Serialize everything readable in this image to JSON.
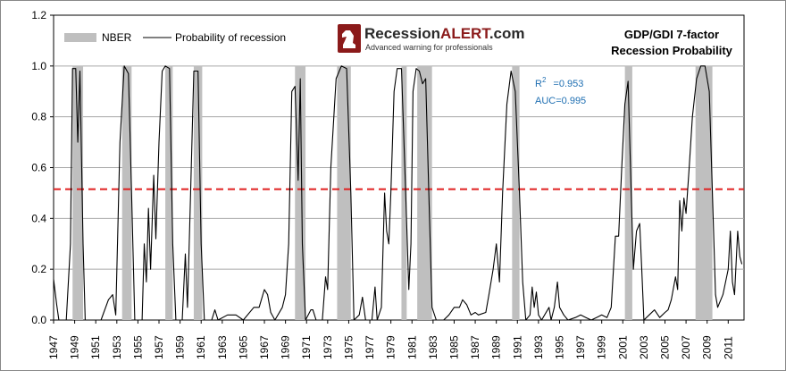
{
  "chart_data": {
    "type": "line",
    "title": "GDP/GDI 7-factor",
    "subtitle": "Recession Probability",
    "xlabel": "",
    "ylabel": "",
    "xlim": [
      1947,
      2012.5
    ],
    "ylim": [
      0,
      1.2
    ],
    "y_ticks": [
      "0.0",
      "0.2",
      "0.4",
      "0.6",
      "0.8",
      "1.0",
      "1.2"
    ],
    "x_ticks": [
      "1947",
      "1949",
      "1951",
      "1953",
      "1955",
      "1957",
      "1959",
      "1961",
      "1963",
      "1965",
      "1967",
      "1969",
      "1971",
      "1973",
      "1975",
      "1977",
      "1979",
      "1981",
      "1983",
      "1985",
      "1987",
      "1989",
      "1991",
      "1993",
      "1995",
      "1997",
      "1999",
      "2001",
      "2003",
      "2005",
      "2007",
      "2009",
      "2011"
    ],
    "grid": "horizontal",
    "legend": {
      "placement": "top-left",
      "entries": [
        "NBER",
        "Probability of recession"
      ]
    },
    "threshold": {
      "value": 0.515,
      "style": "red-dashed"
    },
    "annotations": {
      "r2_label": "R",
      "r2_value": "=0.953",
      "auc": "AUC=0.995"
    },
    "nber_recessions": [
      [
        1948.8,
        1949.8
      ],
      [
        1953.5,
        1954.4
      ],
      [
        1957.6,
        1958.3
      ],
      [
        1960.3,
        1961.1
      ],
      [
        1969.9,
        1970.9
      ],
      [
        1973.9,
        1975.2
      ],
      [
        1980.0,
        1980.5
      ],
      [
        1981.5,
        1982.9
      ],
      [
        1990.5,
        1991.2
      ],
      [
        2001.2,
        2001.9
      ],
      [
        2007.9,
        2009.5
      ]
    ],
    "series": [
      {
        "points": [
          [
            1947.0,
            0.16
          ],
          [
            1947.3,
            0.06
          ],
          [
            1947.5,
            0.0
          ],
          [
            1948.2,
            0.0
          ],
          [
            1948.6,
            0.3
          ],
          [
            1948.8,
            0.99
          ],
          [
            1949.1,
            0.99
          ],
          [
            1949.3,
            0.7
          ],
          [
            1949.5,
            0.98
          ],
          [
            1949.8,
            0.3
          ],
          [
            1950.0,
            0.0
          ],
          [
            1951.5,
            0.0
          ],
          [
            1952.2,
            0.08
          ],
          [
            1952.6,
            0.1
          ],
          [
            1952.9,
            0.02
          ],
          [
            1953.3,
            0.7
          ],
          [
            1953.7,
            1.0
          ],
          [
            1954.1,
            0.97
          ],
          [
            1954.4,
            0.5
          ],
          [
            1954.7,
            0.0
          ],
          [
            1955.4,
            0.0
          ],
          [
            1955.6,
            0.3
          ],
          [
            1955.8,
            0.15
          ],
          [
            1956.0,
            0.44
          ],
          [
            1956.2,
            0.2
          ],
          [
            1956.5,
            0.57
          ],
          [
            1956.7,
            0.32
          ],
          [
            1957.0,
            0.7
          ],
          [
            1957.3,
            0.98
          ],
          [
            1957.6,
            1.0
          ],
          [
            1958.0,
            0.99
          ],
          [
            1958.3,
            0.3
          ],
          [
            1958.6,
            0.0
          ],
          [
            1959.2,
            0.0
          ],
          [
            1959.5,
            0.26
          ],
          [
            1959.7,
            0.05
          ],
          [
            1960.0,
            0.5
          ],
          [
            1960.3,
            0.98
          ],
          [
            1960.7,
            0.98
          ],
          [
            1961.0,
            0.3
          ],
          [
            1961.3,
            0.0
          ],
          [
            1962.0,
            0.0
          ],
          [
            1962.3,
            0.04
          ],
          [
            1962.6,
            0.0
          ],
          [
            1963.5,
            0.02
          ],
          [
            1964.3,
            0.02
          ],
          [
            1965.0,
            0.0
          ],
          [
            1966.0,
            0.05
          ],
          [
            1966.5,
            0.05
          ],
          [
            1967.0,
            0.12
          ],
          [
            1967.3,
            0.1
          ],
          [
            1967.6,
            0.03
          ],
          [
            1968.0,
            0.0
          ],
          [
            1968.7,
            0.05
          ],
          [
            1969.0,
            0.1
          ],
          [
            1969.3,
            0.3
          ],
          [
            1969.6,
            0.9
          ],
          [
            1969.9,
            0.92
          ],
          [
            1970.2,
            0.55
          ],
          [
            1970.4,
            0.95
          ],
          [
            1970.6,
            0.3
          ],
          [
            1970.9,
            0.0
          ],
          [
            1971.4,
            0.04
          ],
          [
            1971.6,
            0.04
          ],
          [
            1971.9,
            0.0
          ],
          [
            1972.5,
            0.0
          ],
          [
            1972.8,
            0.17
          ],
          [
            1973.0,
            0.12
          ],
          [
            1973.3,
            0.6
          ],
          [
            1973.8,
            0.95
          ],
          [
            1974.3,
            1.0
          ],
          [
            1974.8,
            0.99
          ],
          [
            1975.2,
            0.5
          ],
          [
            1975.5,
            0.0
          ],
          [
            1976.0,
            0.02
          ],
          [
            1976.3,
            0.09
          ],
          [
            1976.6,
            0.0
          ],
          [
            1977.2,
            0.0
          ],
          [
            1977.5,
            0.13
          ],
          [
            1977.7,
            0.0
          ],
          [
            1978.1,
            0.05
          ],
          [
            1978.4,
            0.5
          ],
          [
            1978.6,
            0.35
          ],
          [
            1978.8,
            0.3
          ],
          [
            1979.0,
            0.5
          ],
          [
            1979.3,
            0.9
          ],
          [
            1979.6,
            0.99
          ],
          [
            1980.0,
            0.99
          ],
          [
            1980.4,
            0.5
          ],
          [
            1980.7,
            0.12
          ],
          [
            1980.9,
            0.3
          ],
          [
            1981.1,
            0.9
          ],
          [
            1981.4,
            0.99
          ],
          [
            1981.7,
            0.98
          ],
          [
            1982.0,
            0.93
          ],
          [
            1982.3,
            0.95
          ],
          [
            1982.6,
            0.5
          ],
          [
            1982.9,
            0.05
          ],
          [
            1983.3,
            0.0
          ],
          [
            1984.0,
            0.0
          ],
          [
            1984.5,
            0.02
          ],
          [
            1985.0,
            0.05
          ],
          [
            1985.5,
            0.05
          ],
          [
            1985.8,
            0.08
          ],
          [
            1986.2,
            0.06
          ],
          [
            1986.6,
            0.02
          ],
          [
            1987.0,
            0.03
          ],
          [
            1987.3,
            0.02
          ],
          [
            1988.0,
            0.03
          ],
          [
            1988.3,
            0.1
          ],
          [
            1988.7,
            0.2
          ],
          [
            1989.0,
            0.3
          ],
          [
            1989.3,
            0.15
          ],
          [
            1989.6,
            0.5
          ],
          [
            1990.0,
            0.85
          ],
          [
            1990.4,
            0.98
          ],
          [
            1990.8,
            0.9
          ],
          [
            1991.2,
            0.5
          ],
          [
            1991.5,
            0.15
          ],
          [
            1991.8,
            0.0
          ],
          [
            1992.2,
            0.02
          ],
          [
            1992.4,
            0.13
          ],
          [
            1992.6,
            0.05
          ],
          [
            1992.8,
            0.11
          ],
          [
            1993.0,
            0.02
          ],
          [
            1993.3,
            0.0
          ],
          [
            1994.0,
            0.05
          ],
          [
            1994.2,
            0.0
          ],
          [
            1994.5,
            0.05
          ],
          [
            1994.8,
            0.15
          ],
          [
            1995.0,
            0.05
          ],
          [
            1995.4,
            0.02
          ],
          [
            1995.8,
            0.0
          ],
          [
            1996.5,
            0.01
          ],
          [
            1997.0,
            0.02
          ],
          [
            1997.5,
            0.01
          ],
          [
            1998.0,
            0.0
          ],
          [
            1998.5,
            0.01
          ],
          [
            1999.0,
            0.02
          ],
          [
            1999.5,
            0.01
          ],
          [
            1999.9,
            0.05
          ],
          [
            2000.3,
            0.33
          ],
          [
            2000.6,
            0.33
          ],
          [
            2000.9,
            0.6
          ],
          [
            2001.2,
            0.85
          ],
          [
            2001.5,
            0.94
          ],
          [
            2001.8,
            0.5
          ],
          [
            2002.0,
            0.2
          ],
          [
            2002.3,
            0.35
          ],
          [
            2002.6,
            0.38
          ],
          [
            2002.8,
            0.2
          ],
          [
            2003.0,
            0.0
          ],
          [
            2003.5,
            0.02
          ],
          [
            2004.0,
            0.04
          ],
          [
            2004.5,
            0.01
          ],
          [
            2005.0,
            0.03
          ],
          [
            2005.3,
            0.04
          ],
          [
            2005.6,
            0.08
          ],
          [
            2006.0,
            0.17
          ],
          [
            2006.2,
            0.12
          ],
          [
            2006.4,
            0.47
          ],
          [
            2006.6,
            0.35
          ],
          [
            2006.8,
            0.48
          ],
          [
            2007.0,
            0.42
          ],
          [
            2007.3,
            0.6
          ],
          [
            2007.6,
            0.8
          ],
          [
            2008.0,
            0.95
          ],
          [
            2008.4,
            1.0
          ],
          [
            2008.8,
            1.0
          ],
          [
            2009.2,
            0.9
          ],
          [
            2009.5,
            0.5
          ],
          [
            2009.8,
            0.1
          ],
          [
            2010.0,
            0.05
          ],
          [
            2010.5,
            0.1
          ],
          [
            2011.0,
            0.2
          ],
          [
            2011.2,
            0.35
          ],
          [
            2011.4,
            0.15
          ],
          [
            2011.6,
            0.1
          ],
          [
            2011.9,
            0.35
          ],
          [
            2012.1,
            0.25
          ],
          [
            2012.3,
            0.22
          ]
        ]
      }
    ]
  },
  "branding": {
    "name_prefix": "Recession",
    "name_accent": "ALERT",
    "name_suffix": ".com",
    "tagline": "Advanced warning for professionals"
  },
  "colors": {
    "nber_fill": "#BFBFBF",
    "line": "#000000",
    "threshold": "#E02020",
    "gridline": "#A6A6A6",
    "annotation": "#1F6FB2",
    "logo_red": "#8B1A1A"
  }
}
